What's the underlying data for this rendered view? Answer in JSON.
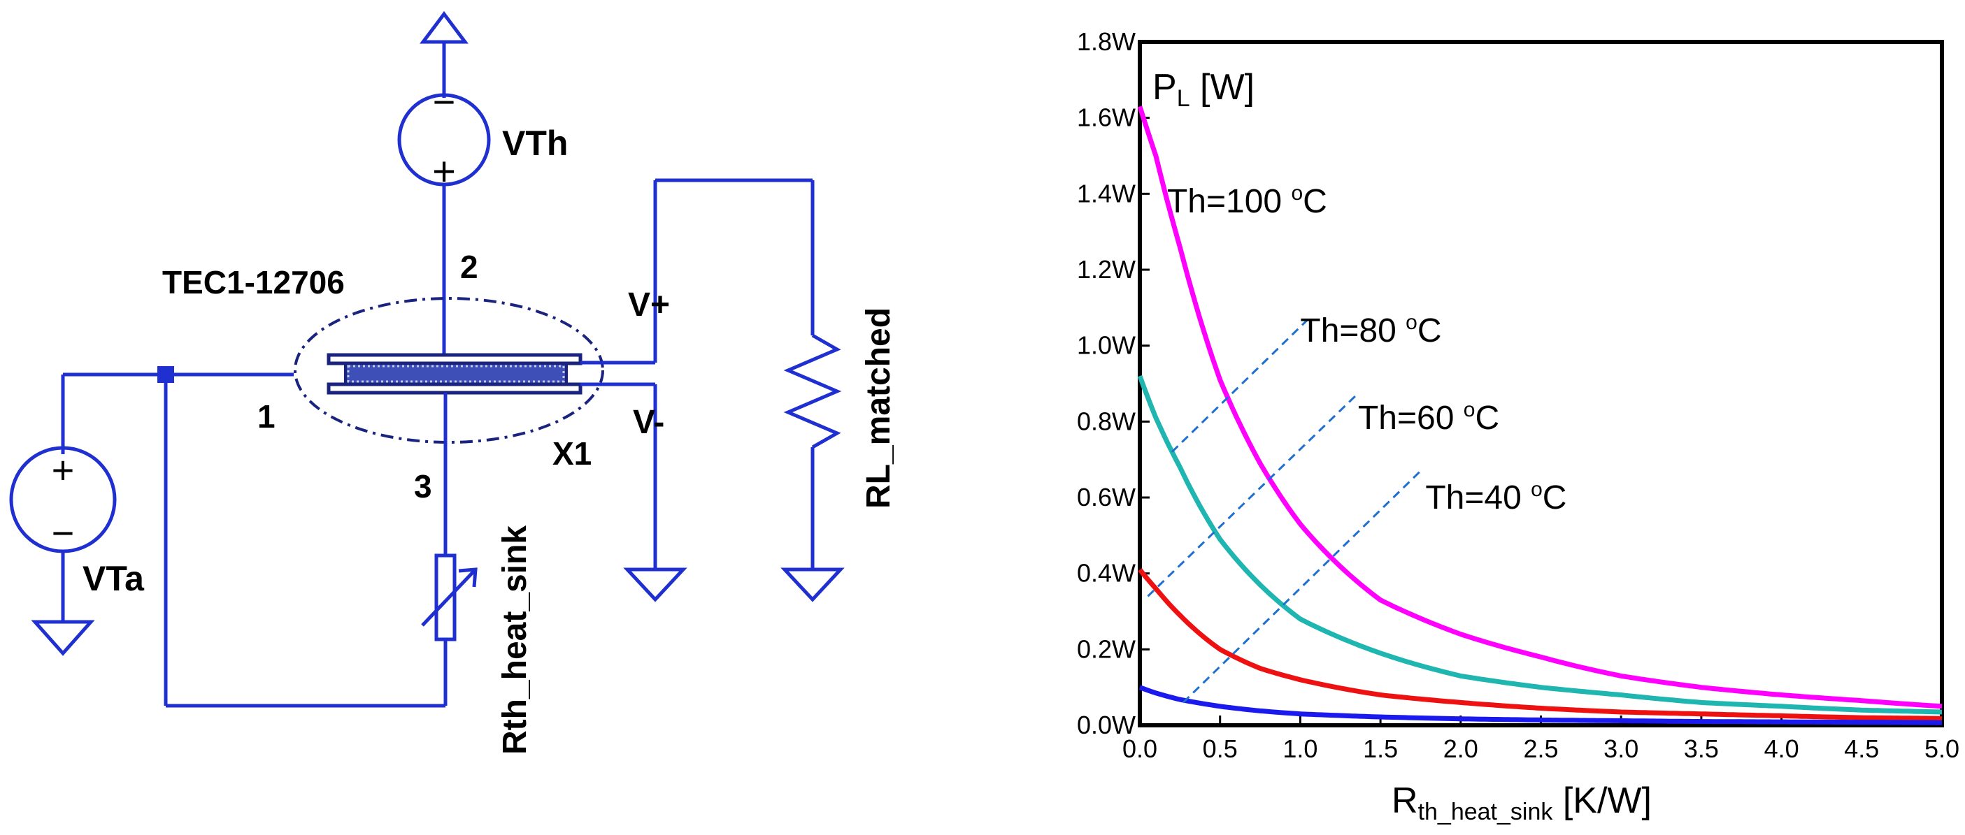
{
  "colors": {
    "wire": "#1f2fd0",
    "module": "#1a237e",
    "magenta": "#ff00ff",
    "teal": "#1fb5b0",
    "red": "#ee1111",
    "blue": "#1a1aee",
    "leader": "#1e6fd0"
  },
  "circuit": {
    "vth_label": "VTh",
    "vta_label": "VTa",
    "module_label": "TEC1-12706",
    "instance_label": "X1",
    "pin1_label": "1",
    "pin2_label": "2",
    "pin3_label": "3",
    "vplus_label": "V+",
    "vminus_label": "V-",
    "rth_label": "Rth_heat_sink",
    "rl_label": "RL_matched",
    "plus_sign": "+",
    "minus_sign": "−"
  },
  "chart_data": {
    "type": "line",
    "ylabel_main": "P",
    "ylabel_sub": "L",
    "ylabel_unit": " [W]",
    "xlabel_main": "R",
    "xlabel_sub": "th_heat_sink",
    "xlabel_unit": " [K/W]",
    "xlim": [
      0.0,
      5.0
    ],
    "ylim": [
      0.0,
      1.8
    ],
    "x_ticks": [
      "0.0",
      "0.5",
      "1.0",
      "1.5",
      "2.0",
      "2.5",
      "3.0",
      "3.5",
      "4.0",
      "4.5",
      "5.0"
    ],
    "y_ticks": [
      "0.0W",
      "0.2W",
      "0.4W",
      "0.6W",
      "0.8W",
      "1.0W",
      "1.2W",
      "1.4W",
      "1.6W",
      "1.8W"
    ],
    "series": [
      {
        "name": "Th=100 °C",
        "label_main": "Th=100 ",
        "label_sup": "o",
        "label_unit": "C",
        "p0": 1.63,
        "x": [
          0,
          0.1,
          0.25,
          0.5,
          0.75,
          1.0,
          1.5,
          2.0,
          2.5,
          3.0,
          3.5,
          4.0,
          4.5,
          5.0
        ],
        "y": [
          1.63,
          1.5,
          1.26,
          0.91,
          0.69,
          0.53,
          0.33,
          0.24,
          0.18,
          0.13,
          0.1,
          0.08,
          0.065,
          0.05
        ]
      },
      {
        "name": "Th=80 °C",
        "label_main": "Th=80 ",
        "label_sup": "o",
        "label_unit": "C",
        "p0": 0.92,
        "x": [
          0,
          0.1,
          0.25,
          0.5,
          0.75,
          1.0,
          1.5,
          2.0,
          2.5,
          3.0,
          3.5,
          4.0,
          4.5,
          5.0
        ],
        "y": [
          0.92,
          0.81,
          0.68,
          0.49,
          0.37,
          0.28,
          0.19,
          0.13,
          0.1,
          0.08,
          0.06,
          0.05,
          0.04,
          0.035
        ]
      },
      {
        "name": "Th=60 °C",
        "label_main": "Th=60 ",
        "label_sup": "o",
        "label_unit": "C",
        "p0": 0.41,
        "x": [
          0,
          0.1,
          0.25,
          0.5,
          0.75,
          1.0,
          1.5,
          2.0,
          2.5,
          3.0,
          3.5,
          4.0,
          4.5,
          5.0
        ],
        "y": [
          0.41,
          0.36,
          0.29,
          0.2,
          0.15,
          0.12,
          0.08,
          0.06,
          0.045,
          0.035,
          0.03,
          0.025,
          0.02,
          0.018
        ]
      },
      {
        "name": "Th=40 °C",
        "label_main": "Th=40 ",
        "label_sup": "o",
        "label_unit": "C",
        "p0": 0.1,
        "x": [
          0,
          0.1,
          0.25,
          0.5,
          0.75,
          1.0,
          1.5,
          2.0,
          2.5,
          3.0,
          3.5,
          4.0,
          4.5,
          5.0
        ],
        "y": [
          0.1,
          0.085,
          0.068,
          0.05,
          0.038,
          0.03,
          0.022,
          0.017,
          0.014,
          0.012,
          0.01,
          0.009,
          0.008,
          0.007
        ]
      }
    ],
    "leaders": [
      {
        "series": 0,
        "from": [
          0.07,
          1.38
        ]
      },
      {
        "series": 1,
        "from": [
          0.2,
          0.72
        ],
        "to": [
          1.05,
          1.07
        ]
      },
      {
        "series": 2,
        "from": [
          0.05,
          0.34
        ],
        "to": [
          1.35,
          0.87
        ]
      },
      {
        "series": 3,
        "from": [
          0.27,
          0.06
        ],
        "to": [
          1.75,
          0.67
        ]
      }
    ]
  }
}
